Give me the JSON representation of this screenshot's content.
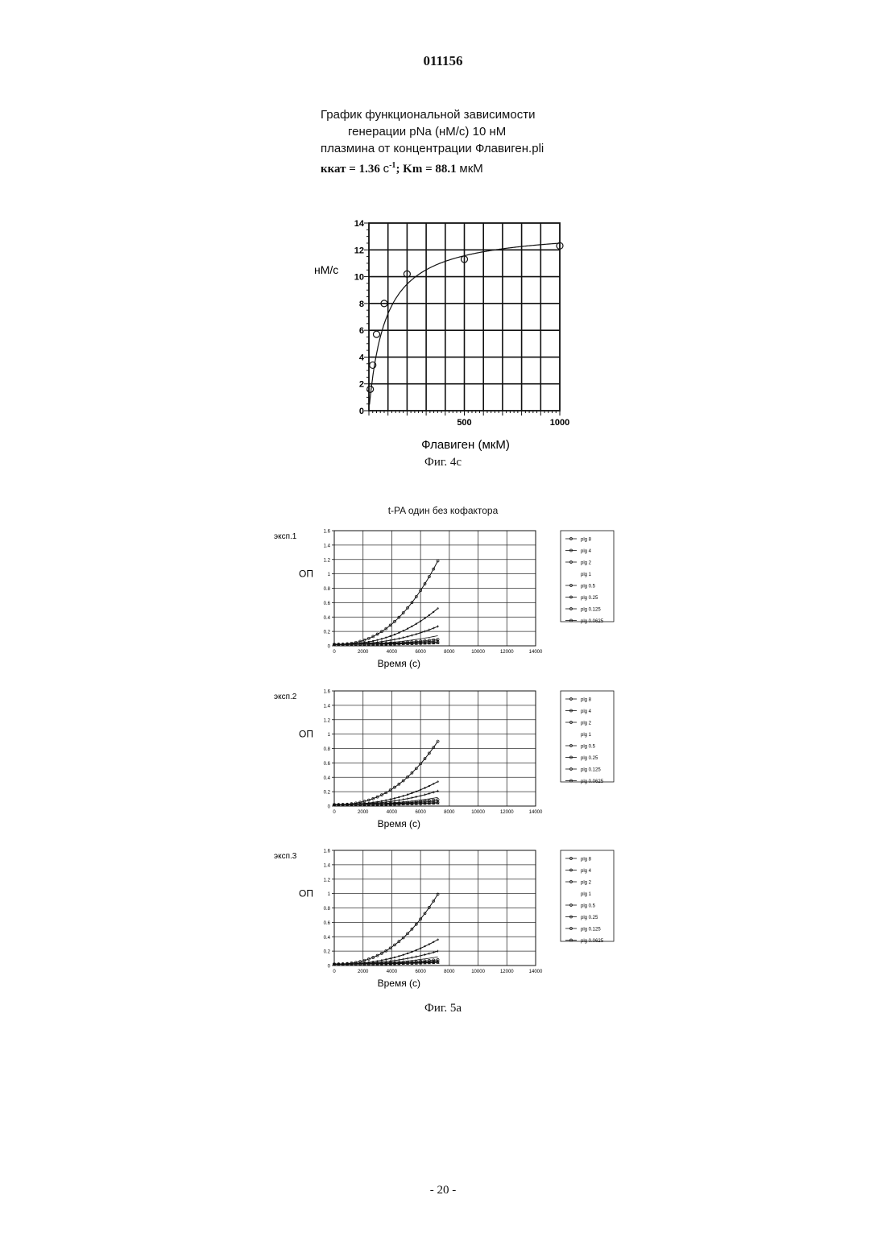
{
  "document_number": "011156",
  "figure_4c": {
    "title_lines": [
      "График функциональной зависимости",
      "генерации   pNa (нМ/с) 10 нМ",
      "плазмина от концентрации Флавиген.pli"
    ],
    "kinetics": {
      "kcat_label": "ккат = 1.36",
      "kcat_unit": "с",
      "kcat_exp": "-1",
      "km_label": "; Km = 88.1",
      "km_unit": "мкМ"
    },
    "caption": "Фиг. 4с"
  },
  "figure_5a": {
    "title": "t-PA один без кофактора",
    "caption": "Фиг. 5а"
  },
  "page_number": "- 20 -",
  "chart_data": [
    {
      "type": "scatter",
      "title": "",
      "xlabel": "Флавиген (мкМ)",
      "ylabel": "нМ/с",
      "xlim": [
        0,
        1000
      ],
      "ylim": [
        0,
        14
      ],
      "x_ticks": [
        500,
        1000
      ],
      "y_ticks": [
        0,
        2,
        4,
        6,
        8,
        10,
        12,
        14
      ],
      "grid": true,
      "points": {
        "x": [
          7,
          20,
          40,
          80,
          200,
          500,
          1000
        ],
        "y": [
          1.6,
          3.4,
          5.7,
          8.0,
          10.2,
          11.3,
          12.3
        ]
      },
      "fit": {
        "model": "michaelis-menten",
        "vmax": 13.6,
        "km": 88.1
      }
    },
    {
      "type": "line",
      "panel_label": "эксп.1",
      "xlabel": "Время (с)",
      "ylabel": "ОП",
      "xlim": [
        0,
        14000
      ],
      "ylim": [
        0,
        1.6
      ],
      "x_ticks": [
        0,
        2000,
        4000,
        6000,
        8000,
        10000,
        12000,
        14000
      ],
      "y_ticks": [
        0,
        0.2,
        0.4,
        0.6,
        0.8,
        1,
        1.2,
        1.4,
        1.6
      ],
      "y_tick_labels": [
        "0",
        "0.2",
        "0.4",
        "0.6",
        "0.8",
        "1",
        "1.2",
        "1.4",
        "1.6"
      ],
      "grid": true,
      "legend": "right",
      "x_end": 7200,
      "series": [
        {
          "name": "plg 8",
          "y_end": 1.18
        },
        {
          "name": "plg 4",
          "y_end": 0.52
        },
        {
          "name": "plg 2",
          "y_end": 0.27
        },
        {
          "name": "plg 1",
          "y_end": 0.14
        },
        {
          "name": "plg 0.5",
          "y_end": 0.09
        },
        {
          "name": "plg 0.25",
          "y_end": 0.07
        },
        {
          "name": "plg 0.125",
          "y_end": 0.05
        },
        {
          "name": "plg 0.0625",
          "y_end": 0.04
        }
      ]
    },
    {
      "type": "line",
      "panel_label": "эксп.2",
      "xlabel": "Время (с)",
      "ylabel": "ОП",
      "xlim": [
        0,
        14000
      ],
      "ylim": [
        0,
        1.6
      ],
      "x_ticks": [
        0,
        2000,
        4000,
        6000,
        8000,
        10000,
        12000,
        14000
      ],
      "y_ticks": [
        0,
        0.2,
        0.4,
        0.6,
        0.8,
        1,
        1.2,
        1.4,
        1.6
      ],
      "y_tick_labels": [
        "0",
        "0.2",
        "0.4",
        "0.6",
        "0.8",
        "1",
        "1.2",
        "1.4",
        "1.6"
      ],
      "grid": true,
      "legend": "right",
      "x_end": 7200,
      "series": [
        {
          "name": "plg 8",
          "y_end": 0.9
        },
        {
          "name": "plg 4",
          "y_end": 0.34
        },
        {
          "name": "plg 2",
          "y_end": 0.21
        },
        {
          "name": "plg 1",
          "y_end": 0.12
        },
        {
          "name": "plg 0.5",
          "y_end": 0.09
        },
        {
          "name": "plg 0.25",
          "y_end": 0.07
        },
        {
          "name": "plg 0.125",
          "y_end": 0.05
        },
        {
          "name": "plg 0.0625",
          "y_end": 0.04
        }
      ]
    },
    {
      "type": "line",
      "panel_label": "эксп.3",
      "xlabel": "Время (с)",
      "ylabel": "ОП",
      "xlim": [
        0,
        14000
      ],
      "ylim": [
        0,
        1.6
      ],
      "x_ticks": [
        0,
        2000,
        4000,
        6000,
        8000,
        10000,
        12000,
        14000
      ],
      "y_ticks": [
        0,
        0.2,
        0.4,
        0.6,
        0.8,
        1,
        1.2,
        1.4,
        1.6
      ],
      "y_tick_labels": [
        "0",
        "0.2",
        "0.4",
        "0.6",
        "0.8",
        "1",
        "1.2",
        "1.4",
        "1.6"
      ],
      "grid": true,
      "legend": "right",
      "x_end": 7200,
      "series": [
        {
          "name": "plg 8",
          "y_end": 0.99
        },
        {
          "name": "plg 4",
          "y_end": 0.36
        },
        {
          "name": "plg 2",
          "y_end": 0.2
        },
        {
          "name": "plg 1",
          "y_end": 0.12
        },
        {
          "name": "plg 0.5",
          "y_end": 0.08
        },
        {
          "name": "plg 0.25",
          "y_end": 0.06
        },
        {
          "name": "plg 0.125",
          "y_end": 0.05
        },
        {
          "name": "plg 0.0625",
          "y_end": 0.04
        }
      ]
    }
  ]
}
